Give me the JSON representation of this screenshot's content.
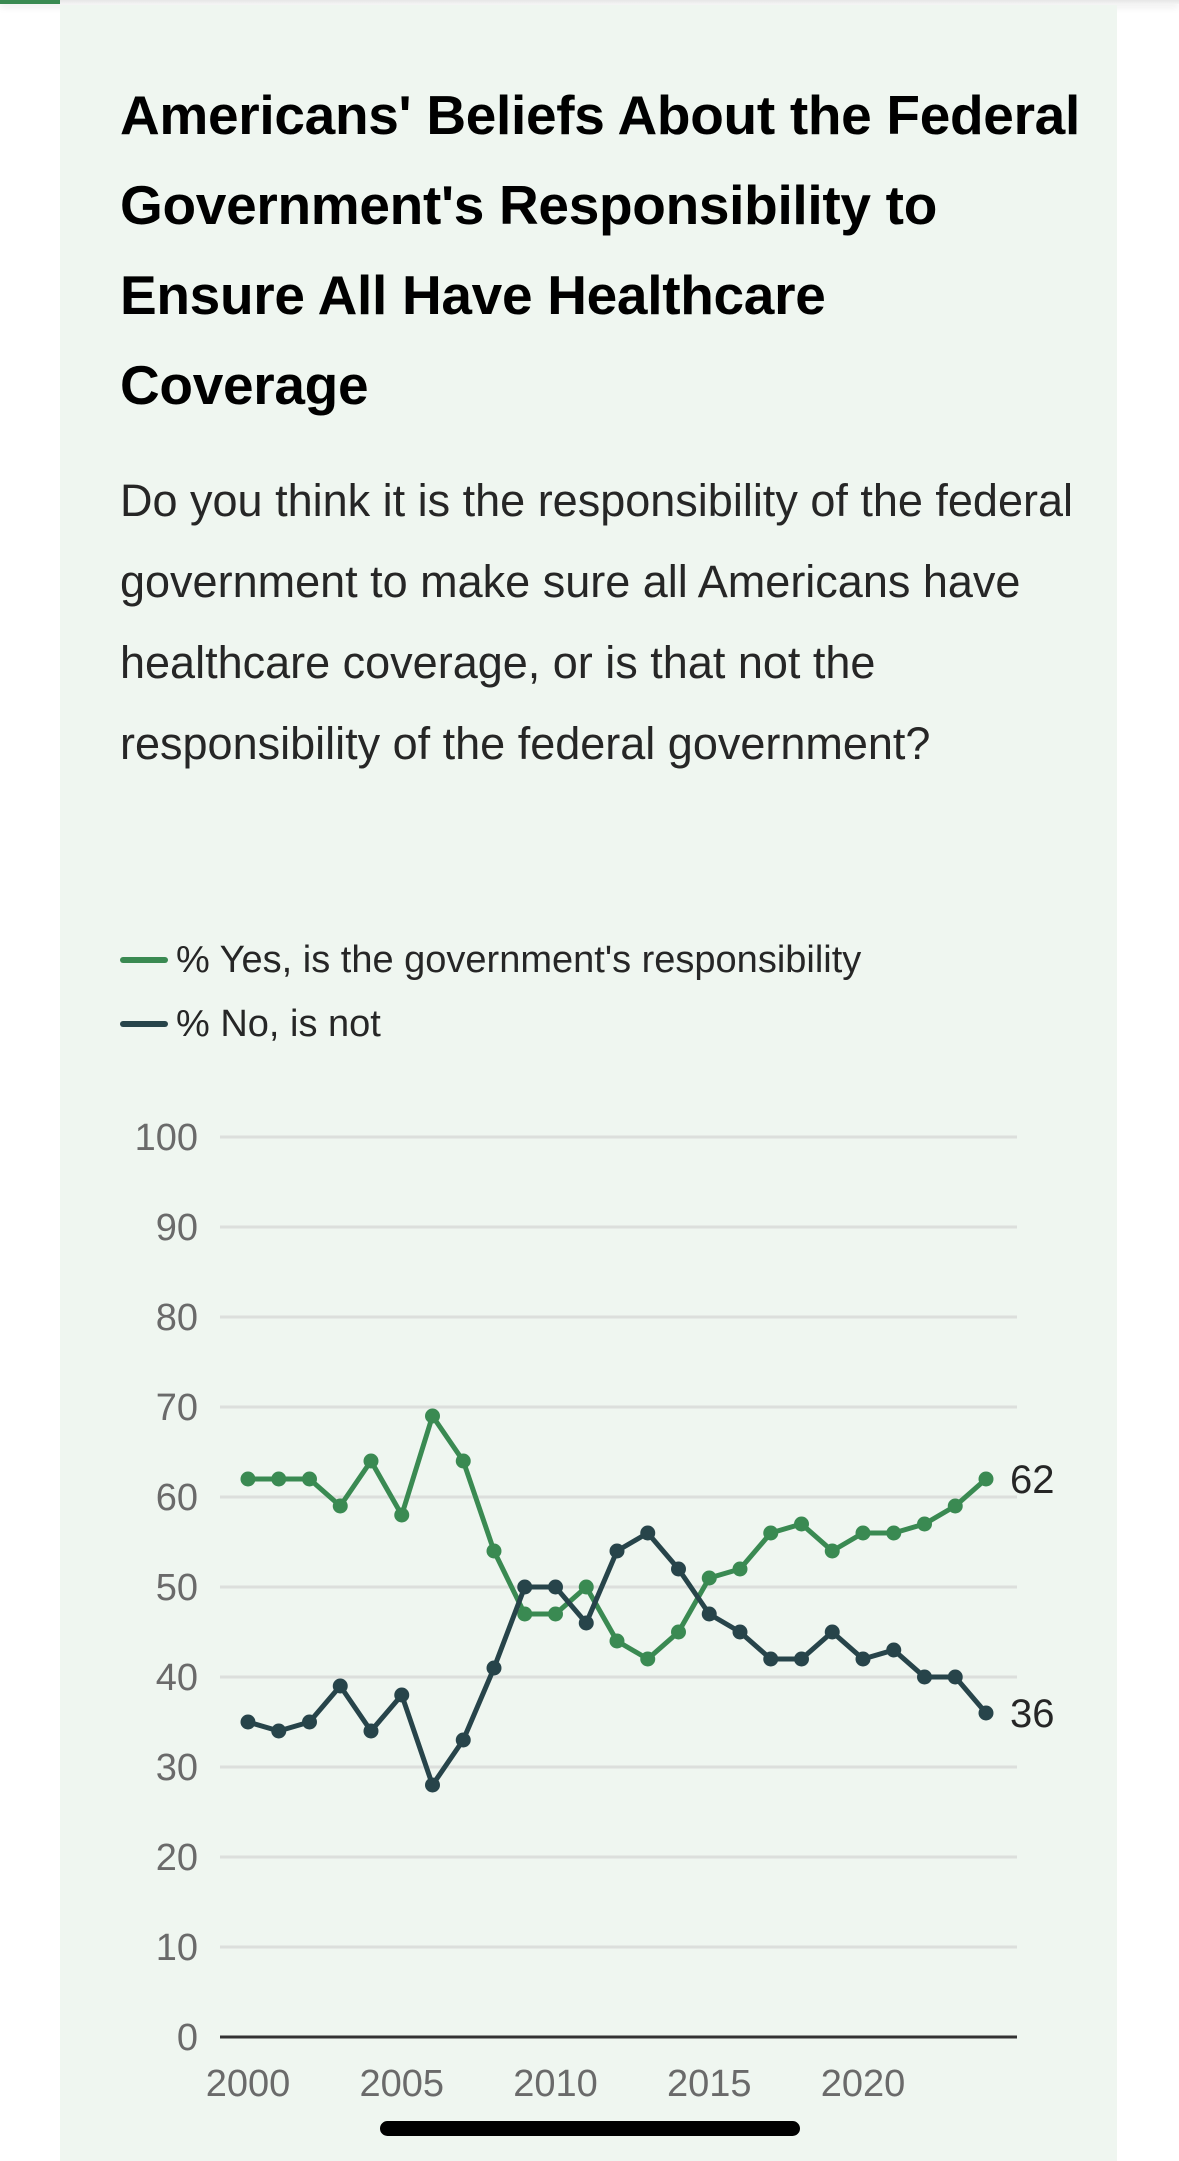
{
  "colors": {
    "accent": "#3a8a52",
    "yes_series": "#3a8a52",
    "no_series": "#27444a",
    "card_bg": "#eff6f0",
    "grid": "#dcdfdc",
    "axis": "#333333"
  },
  "header": {
    "title": "Americans' Beliefs About the Federal Government's Responsibility to Ensure All Have Healthcare Coverage",
    "question": "Do you think it is the responsibility of the federal government to make sure all Americans have healthcare coverage, or is that not the responsibility of the federal government?"
  },
  "legend": [
    {
      "label": "% Yes, is the government's responsibility",
      "series": "yes"
    },
    {
      "label": "% No, is not",
      "series": "no"
    }
  ],
  "chart_data": {
    "type": "line",
    "title": "Americans' Beliefs About the Federal Government's Responsibility to Ensure All Have Healthcare Coverage",
    "xlabel": "",
    "ylabel": "",
    "x": [
      2000,
      2001,
      2002,
      2003,
      2004,
      2005,
      2006,
      2007,
      2008,
      2009,
      2010,
      2011,
      2012,
      2013,
      2014,
      2015,
      2016,
      2017,
      2018,
      2019,
      2020,
      2021,
      2022,
      2023,
      2024
    ],
    "series": [
      {
        "name": "% Yes, is the government's responsibility",
        "key": "yes",
        "values": [
          62,
          62,
          62,
          59,
          64,
          58,
          69,
          64,
          54,
          47,
          47,
          50,
          44,
          42,
          45,
          51,
          52,
          56,
          57,
          54,
          56,
          56,
          57,
          59,
          62
        ],
        "end_label": "62"
      },
      {
        "name": "% No, is not",
        "key": "no",
        "values": [
          35,
          34,
          35,
          39,
          34,
          38,
          28,
          33,
          41,
          50,
          50,
          46,
          54,
          56,
          52,
          47,
          45,
          42,
          42,
          45,
          42,
          43,
          40,
          40,
          36
        ],
        "end_label": "36"
      }
    ],
    "ylim": [
      0,
      100
    ],
    "yticks": [
      0,
      10,
      20,
      30,
      40,
      50,
      60,
      70,
      80,
      90,
      100
    ],
    "xlim": [
      2000,
      2024
    ],
    "xticks": [
      2000,
      2005,
      2010,
      2015,
      2020
    ],
    "grid": true,
    "legend_position": "top-left"
  }
}
